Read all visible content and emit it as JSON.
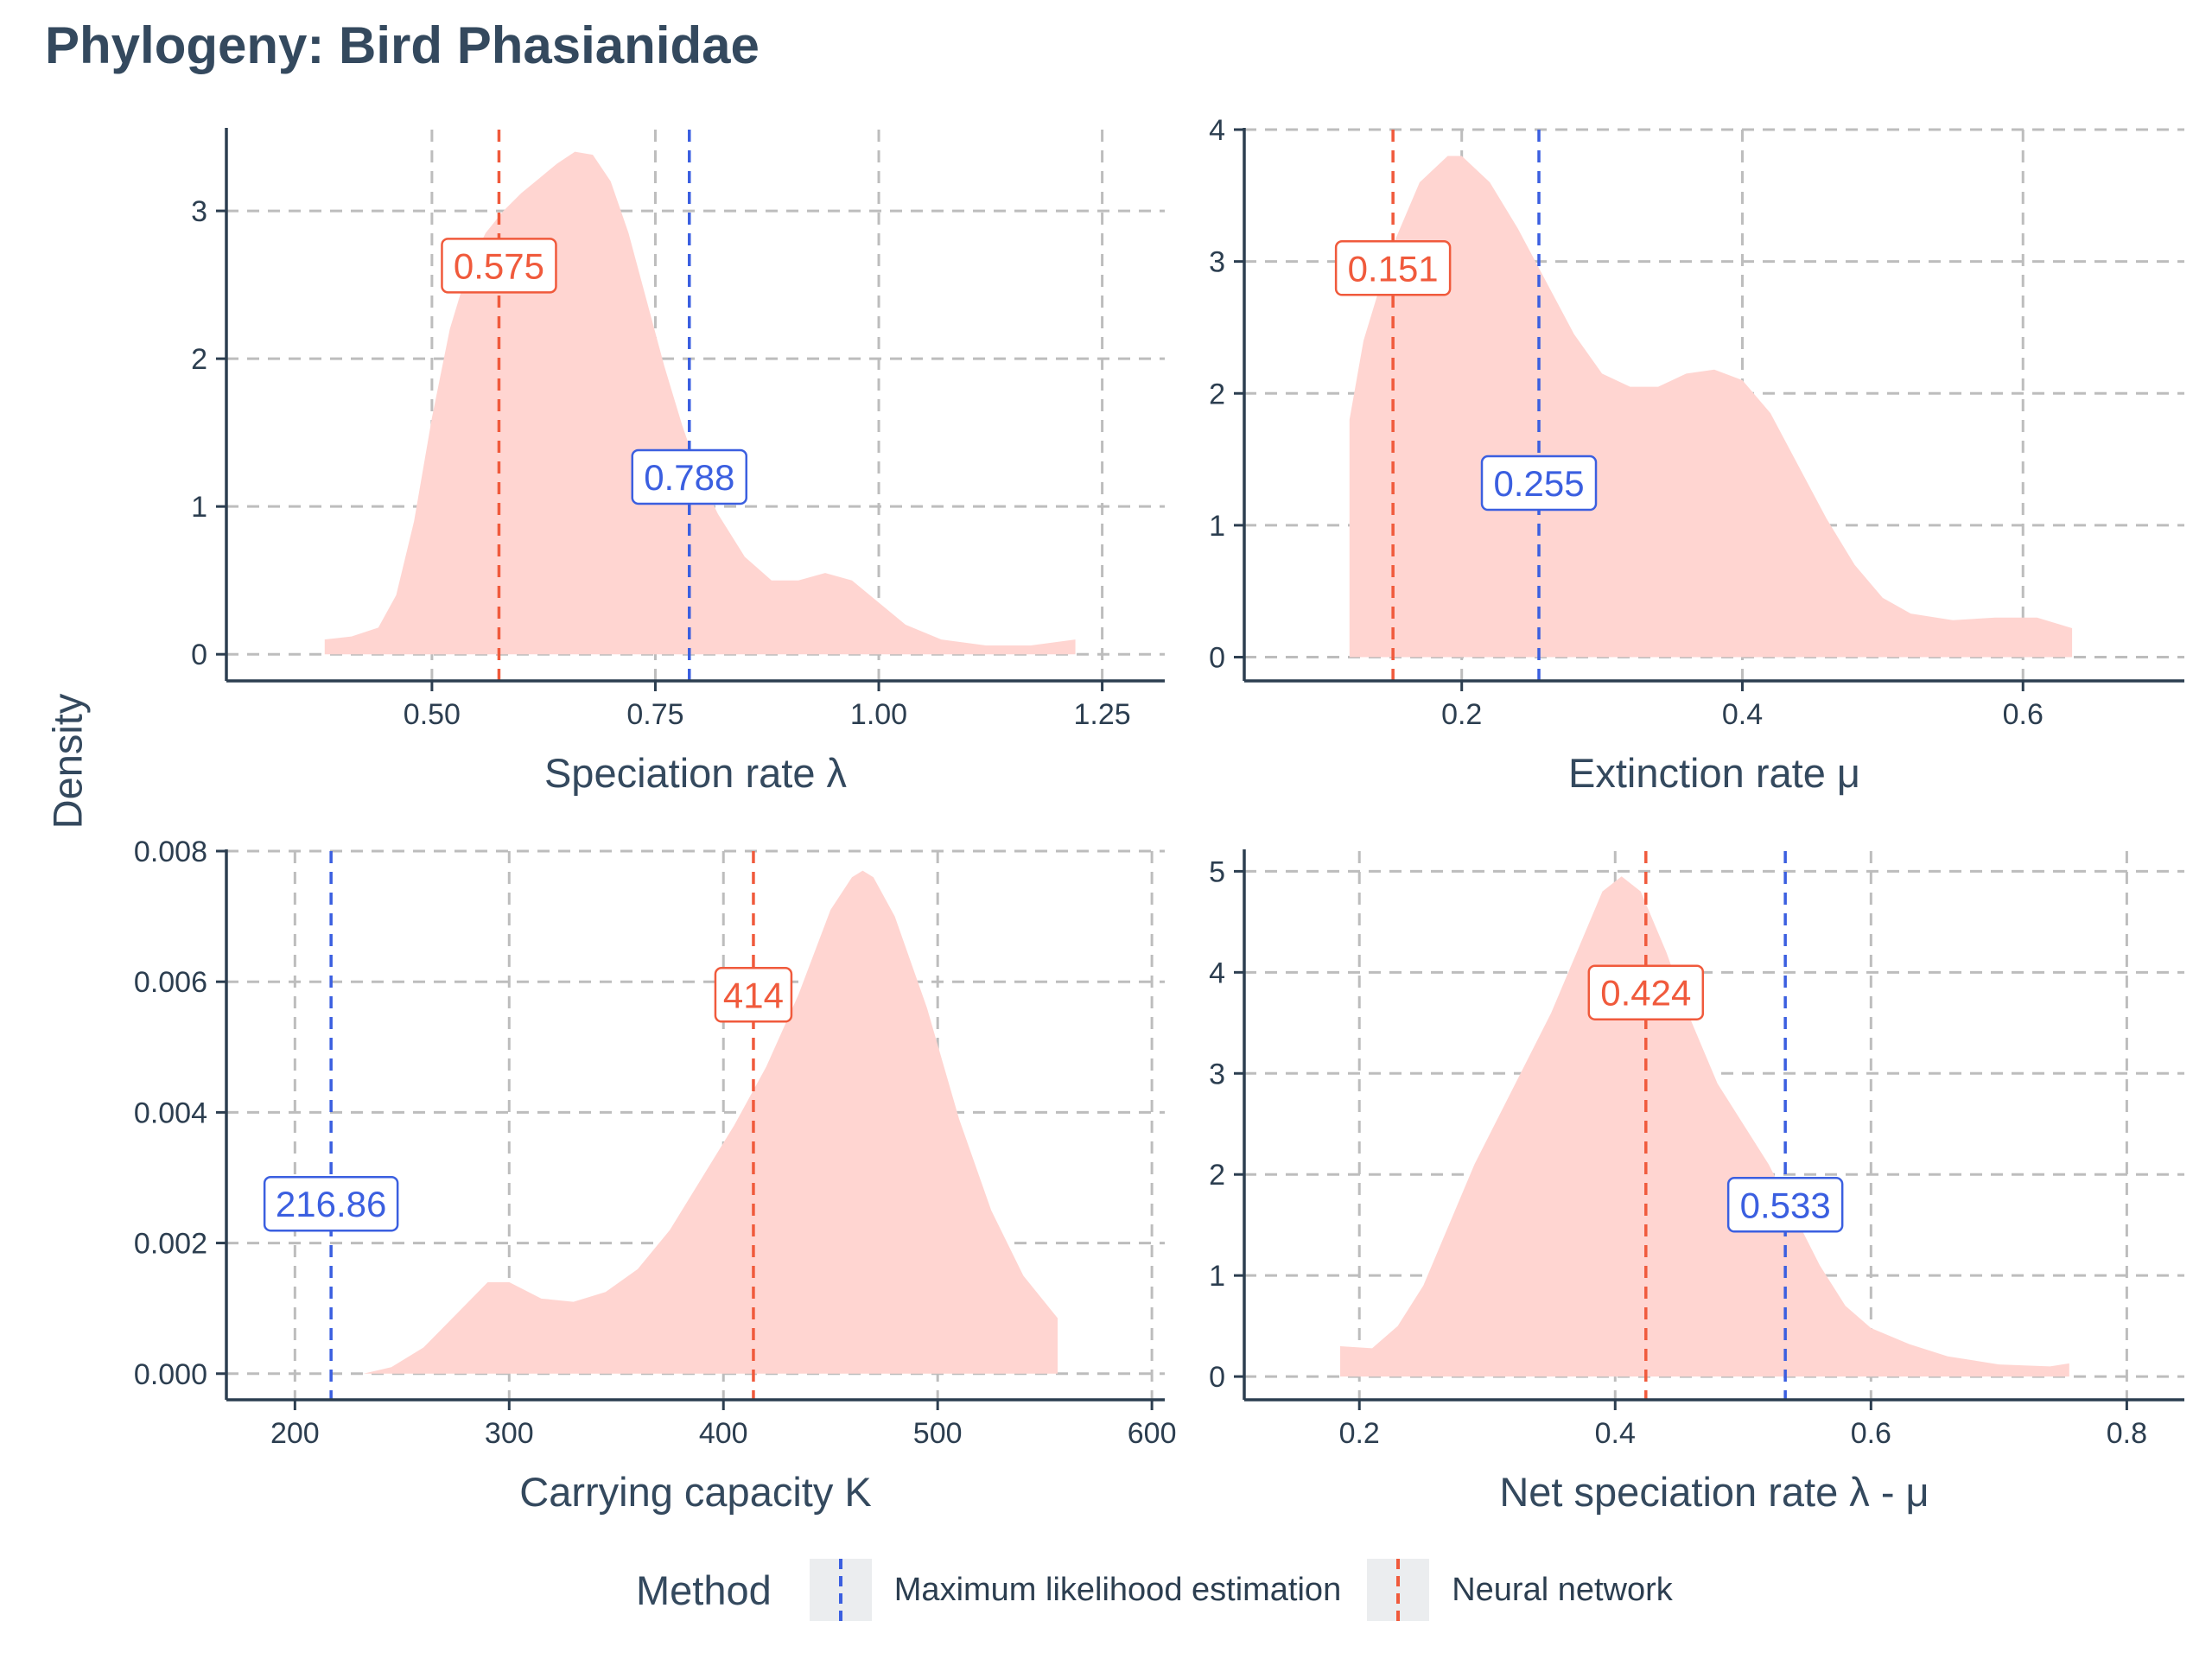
{
  "title": "Phylogeny: Bird Phasianidae",
  "y_shared_label": "Density",
  "legend": {
    "title": "Method",
    "items": [
      {
        "label": "Maximum likelihood estimation",
        "color": "#3b5fe0"
      },
      {
        "label": "Neural network",
        "color": "#f05a3c"
      }
    ]
  },
  "colors": {
    "density_fill": "#ffd5d1",
    "grid": "#bdbdbd",
    "axis": "#2c3e50",
    "mle": "#3b5fe0",
    "nn": "#f05a3c"
  },
  "chart_data": [
    {
      "type": "area",
      "xlabel": "Speciation rate λ",
      "xlim": [
        0.27,
        1.32
      ],
      "ylim": [
        -0.18,
        3.55
      ],
      "xticks": [
        0.5,
        0.75,
        1.0,
        1.25
      ],
      "xtick_labels": [
        "0.50",
        "0.75",
        "1.00",
        "1.25"
      ],
      "yticks": [
        0,
        1,
        2,
        3
      ],
      "ytick_labels": [
        "0",
        "1",
        "2",
        "3"
      ],
      "density": {
        "x": [
          0.38,
          0.41,
          0.44,
          0.46,
          0.48,
          0.5,
          0.52,
          0.54,
          0.56,
          0.58,
          0.6,
          0.62,
          0.64,
          0.66,
          0.68,
          0.7,
          0.72,
          0.74,
          0.76,
          0.78,
          0.8,
          0.82,
          0.85,
          0.88,
          0.91,
          0.94,
          0.97,
          1.0,
          1.03,
          1.07,
          1.12,
          1.17,
          1.22
        ],
        "y": [
          0.1,
          0.12,
          0.18,
          0.4,
          0.9,
          1.6,
          2.2,
          2.6,
          2.85,
          3.0,
          3.12,
          3.22,
          3.32,
          3.4,
          3.38,
          3.2,
          2.85,
          2.4,
          1.95,
          1.55,
          1.2,
          0.95,
          0.66,
          0.5,
          0.5,
          0.55,
          0.5,
          0.35,
          0.2,
          0.1,
          0.06,
          0.06,
          0.1
        ]
      },
      "mle": {
        "value": 0.788,
        "label": "0.788",
        "label_y": 1.2
      },
      "nn": {
        "value": 0.575,
        "label": "0.575",
        "label_y": 2.63
      }
    },
    {
      "type": "area",
      "xlabel": "Extinction rate μ",
      "xlim": [
        0.045,
        0.715
      ],
      "ylim": [
        -0.18,
        4.0
      ],
      "xticks": [
        0.2,
        0.4,
        0.6
      ],
      "xtick_labels": [
        "0.2",
        "0.4",
        "0.6"
      ],
      "yticks": [
        0,
        1,
        2,
        3,
        4
      ],
      "ytick_labels": [
        "0",
        "1",
        "2",
        "3",
        "4"
      ],
      "density": {
        "x": [
          0.12,
          0.13,
          0.15,
          0.17,
          0.19,
          0.2,
          0.22,
          0.24,
          0.26,
          0.28,
          0.3,
          0.32,
          0.34,
          0.36,
          0.38,
          0.4,
          0.42,
          0.44,
          0.46,
          0.48,
          0.5,
          0.52,
          0.55,
          0.58,
          0.61,
          0.635
        ],
        "y": [
          1.8,
          2.4,
          3.1,
          3.6,
          3.8,
          3.8,
          3.6,
          3.25,
          2.85,
          2.45,
          2.15,
          2.05,
          2.05,
          2.15,
          2.18,
          2.1,
          1.85,
          1.45,
          1.05,
          0.7,
          0.45,
          0.33,
          0.28,
          0.3,
          0.3,
          0.22
        ]
      },
      "mle": {
        "value": 0.255,
        "label": "0.255",
        "label_y": 1.32
      },
      "nn": {
        "value": 0.151,
        "label": "0.151",
        "label_y": 2.95
      }
    },
    {
      "type": "area",
      "xlabel": "Carrying capacity K",
      "xlim": [
        168,
        606
      ],
      "ylim": [
        -0.0004,
        0.008
      ],
      "xticks": [
        200,
        300,
        400,
        500,
        600
      ],
      "xtick_labels": [
        "200",
        "300",
        "400",
        "500",
        "600"
      ],
      "yticks": [
        0,
        0.002,
        0.004,
        0.006,
        0.008
      ],
      "ytick_labels": [
        "0.000",
        "0.002",
        "0.004",
        "0.006",
        "0.008"
      ],
      "density": {
        "x": [
          232,
          245,
          260,
          275,
          290,
          300,
          315,
          330,
          345,
          360,
          375,
          390,
          405,
          420,
          435,
          450,
          460,
          465,
          470,
          480,
          495,
          510,
          525,
          540,
          556
        ],
        "y": [
          0.0,
          0.0001,
          0.0004,
          0.0009,
          0.0014,
          0.0014,
          0.00115,
          0.0011,
          0.00125,
          0.0016,
          0.0022,
          0.003,
          0.0038,
          0.0047,
          0.0058,
          0.0071,
          0.0076,
          0.0077,
          0.0076,
          0.007,
          0.0056,
          0.0039,
          0.0025,
          0.0015,
          0.00085
        ]
      },
      "mle": {
        "value": 216.86,
        "label": "216.86",
        "label_y": 0.0026
      },
      "nn": {
        "value": 414,
        "label": "414",
        "label_y": 0.0058
      }
    },
    {
      "type": "area",
      "xlabel": "Net speciation rate λ - μ",
      "xlim": [
        0.11,
        0.845
      ],
      "ylim": [
        -0.23,
        5.2
      ],
      "xticks": [
        0.2,
        0.4,
        0.6,
        0.8
      ],
      "xtick_labels": [
        "0.2",
        "0.4",
        "0.6",
        "0.8"
      ],
      "yticks": [
        0,
        1,
        2,
        3,
        4,
        5
      ],
      "ytick_labels": [
        "0",
        "1",
        "2",
        "3",
        "4",
        "5"
      ],
      "density": {
        "x": [
          0.185,
          0.21,
          0.23,
          0.25,
          0.27,
          0.29,
          0.31,
          0.33,
          0.35,
          0.37,
          0.39,
          0.405,
          0.42,
          0.44,
          0.46,
          0.48,
          0.5,
          0.52,
          0.54,
          0.56,
          0.58,
          0.6,
          0.63,
          0.66,
          0.7,
          0.74,
          0.755
        ],
        "y": [
          0.3,
          0.28,
          0.5,
          0.9,
          1.5,
          2.1,
          2.6,
          3.1,
          3.6,
          4.2,
          4.8,
          4.95,
          4.8,
          4.2,
          3.5,
          2.9,
          2.5,
          2.1,
          1.6,
          1.1,
          0.7,
          0.48,
          0.32,
          0.2,
          0.12,
          0.1,
          0.13
        ]
      },
      "mle": {
        "value": 0.533,
        "label": "0.533",
        "label_y": 1.7
      },
      "nn": {
        "value": 0.424,
        "label": "0.424",
        "label_y": 3.8
      }
    }
  ]
}
